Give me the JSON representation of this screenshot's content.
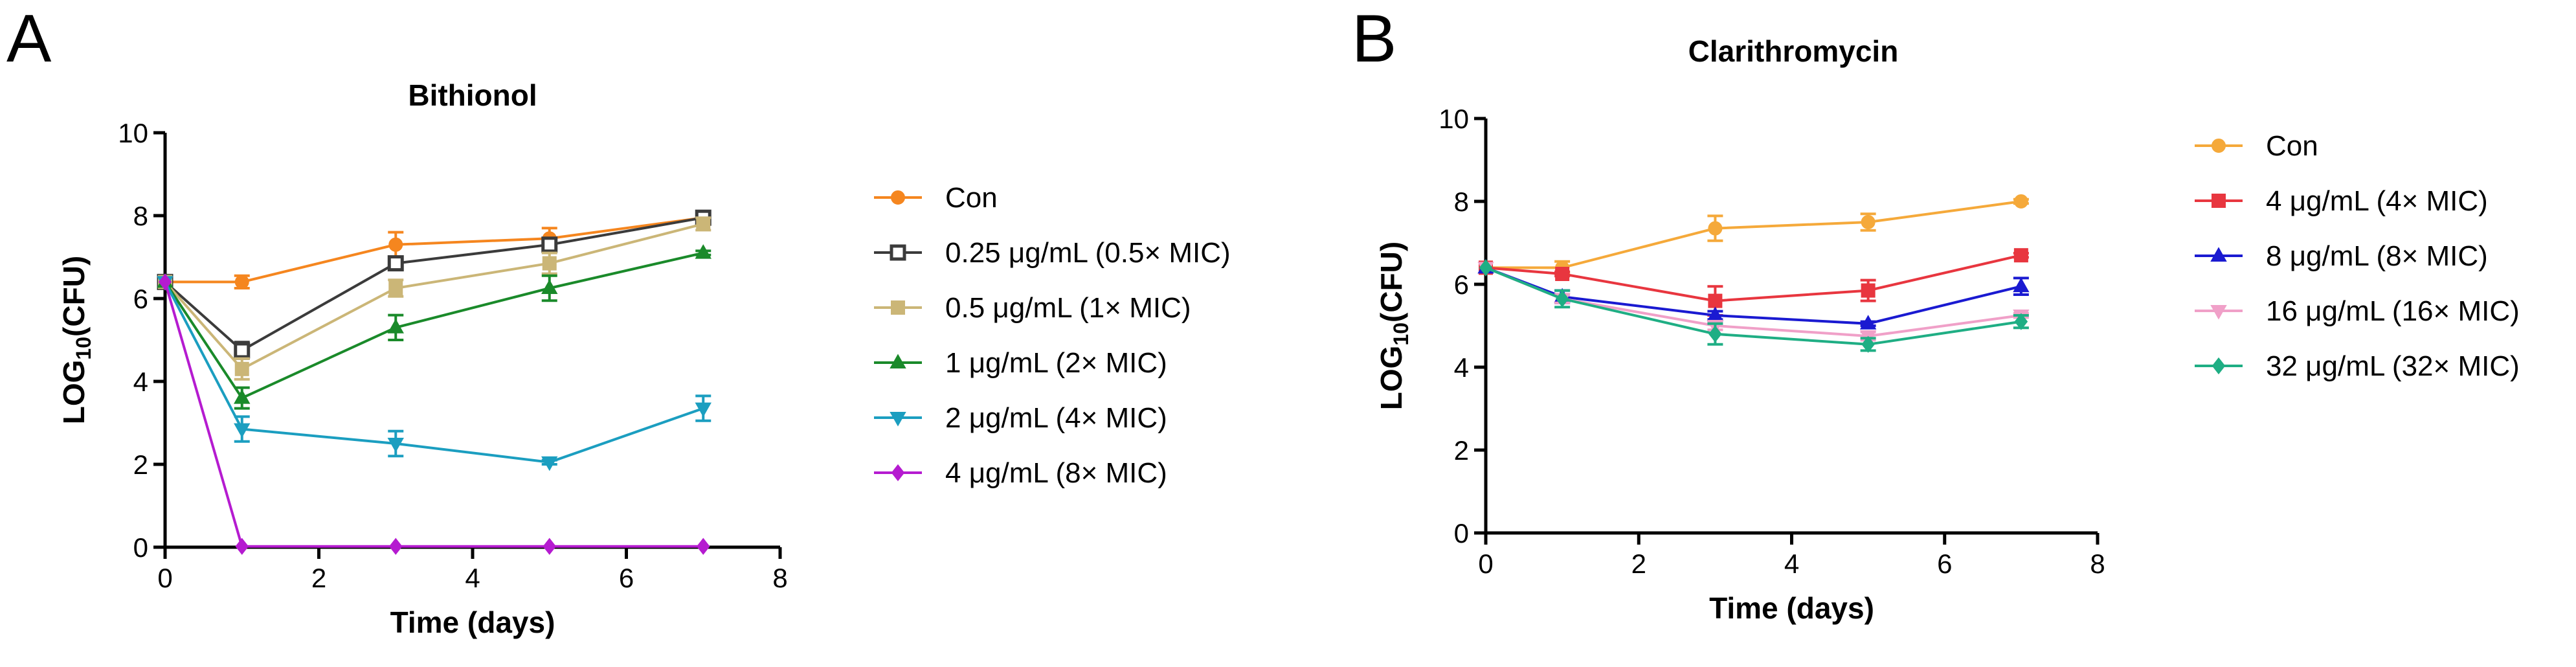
{
  "panels": [
    {
      "letter": "A",
      "chart_data": {
        "type": "line",
        "title": "Bithionol",
        "xlabel": "Time (days)",
        "ylabel": "LOG10(CFU)",
        "xlim": [
          0,
          8
        ],
        "ylim": [
          0,
          10
        ],
        "xticks": [
          0,
          2,
          4,
          6,
          8
        ],
        "yticks": [
          0,
          2,
          4,
          6,
          8,
          10
        ],
        "x": [
          0,
          1,
          3,
          5,
          7
        ],
        "legend_position": "right",
        "series": [
          {
            "name": "Con",
            "color": "#f5861f",
            "marker": "circle",
            "filled": true,
            "values": [
              6.4,
              6.4,
              7.3,
              7.45,
              7.95
            ],
            "errors": [
              0,
              0.15,
              0.3,
              0.25,
              0.1
            ]
          },
          {
            "name": "0.25 μg/mL (0.5× MIC)",
            "color": "#3b3b3b",
            "marker": "square",
            "filled": false,
            "values": [
              6.4,
              4.75,
              6.85,
              7.3,
              7.95
            ],
            "errors": [
              0,
              0.2,
              0.1,
              0.1,
              0.1
            ]
          },
          {
            "name": "0.5 μg/mL (1× MIC)",
            "color": "#cbb677",
            "marker": "square",
            "filled": true,
            "values": [
              6.4,
              4.3,
              6.25,
              6.85,
              7.8
            ],
            "errors": [
              0,
              0.25,
              0.2,
              0.25,
              0.15
            ]
          },
          {
            "name": "1 μg/mL (2× MIC)",
            "color": "#1a8a2a",
            "marker": "triangle-up",
            "filled": true,
            "values": [
              6.4,
              3.6,
              5.3,
              6.25,
              7.1
            ],
            "errors": [
              0,
              0.25,
              0.3,
              0.3,
              0.05
            ]
          },
          {
            "name": "2 μg/mL (4× MIC)",
            "color": "#1b9ec0",
            "marker": "triangle-down",
            "filled": true,
            "values": [
              6.4,
              2.85,
              2.5,
              2.05,
              3.35
            ],
            "errors": [
              0,
              0.3,
              0.3,
              0.05,
              0.3
            ]
          },
          {
            "name": "4 μg/mL (8× MIC)",
            "color": "#b51bd0",
            "marker": "diamond",
            "filled": true,
            "values": [
              6.4,
              0.02,
              0.02,
              0.02,
              0.02
            ],
            "errors": [
              0,
              0,
              0,
              0,
              0
            ]
          }
        ]
      }
    },
    {
      "letter": "B",
      "chart_data": {
        "type": "line",
        "title": "Clarithromycin",
        "xlabel": "Time (days)",
        "ylabel": "LOG10(CFU)",
        "xlim": [
          0,
          8
        ],
        "ylim": [
          0,
          10
        ],
        "xticks": [
          0,
          2,
          4,
          6,
          8
        ],
        "yticks": [
          0,
          2,
          4,
          6,
          8,
          10
        ],
        "x": [
          0,
          1,
          3,
          5,
          7
        ],
        "legend_position": "right",
        "series": [
          {
            "name": "Con",
            "color": "#f5a93a",
            "marker": "circle",
            "filled": true,
            "values": [
              6.4,
              6.4,
              7.35,
              7.5,
              8.0
            ],
            "errors": [
              0,
              0.15,
              0.3,
              0.2,
              0.05
            ]
          },
          {
            "name": "4 μg/mL (4× MIC)",
            "color": "#e8363f",
            "marker": "square",
            "filled": true,
            "values": [
              6.4,
              6.25,
              5.6,
              5.85,
              6.7
            ],
            "errors": [
              0,
              0.05,
              0.35,
              0.25,
              0.05
            ]
          },
          {
            "name": "8 μg/mL (8× MIC)",
            "color": "#1a1ad1",
            "marker": "triangle-up",
            "filled": true,
            "values": [
              6.4,
              5.7,
              5.25,
              5.05,
              5.95
            ],
            "errors": [
              0,
              0.15,
              0.1,
              0.05,
              0.2
            ]
          },
          {
            "name": "16 μg/mL (16× MIC)",
            "color": "#f0a0c8",
            "marker": "triangle-down",
            "filled": true,
            "values": [
              6.4,
              5.65,
              5.0,
              4.75,
              5.25
            ],
            "errors": [
              0,
              0.1,
              0.1,
              0.1,
              0.05
            ]
          },
          {
            "name": "32 μg/mL (32× MIC)",
            "color": "#1fae84",
            "marker": "diamond",
            "filled": true,
            "values": [
              6.4,
              5.65,
              4.8,
              4.55,
              5.1
            ],
            "errors": [
              0,
              0.2,
              0.25,
              0.15,
              0.15
            ]
          }
        ]
      }
    }
  ]
}
